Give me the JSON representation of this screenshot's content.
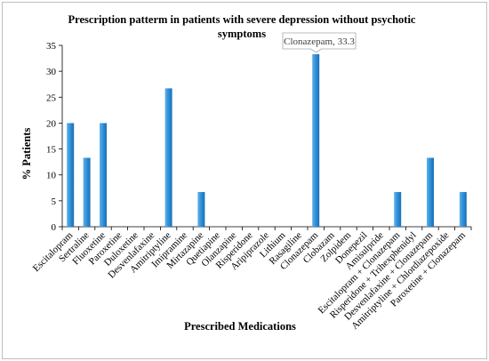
{
  "chart_data": {
    "type": "bar",
    "title": "Prescription patterm in patients with severe depression without psychotic symptoms",
    "xlabel": "Prescribed Medications",
    "ylabel": "% Patients",
    "ylim": [
      0,
      35
    ],
    "yticks": [
      0,
      5,
      10,
      15,
      20,
      25,
      30,
      35
    ],
    "grid": false,
    "legend": "none",
    "bar_color": "#2e8fd8",
    "categories": [
      "Escitalopram",
      "Sertraline",
      "Fluoxetine",
      "Paroxetine",
      "Duloxetine",
      "Desvenlafaxine",
      "Amitriptyline",
      "Imipramine",
      "Mirtazapine",
      "Quetiapine",
      "Olanzapine",
      "Risperidone",
      "Aripiprazole",
      "Lithium",
      "Rasagiline",
      "Clonazepam",
      "Clobazam",
      "Zolpidem",
      "Donepezil",
      "Amisulpride",
      "Escitalopram + Clonazepam",
      "Risperidone + Trihexphenidyl",
      "Desvenlafaxine + Clonazepam",
      "Amitriptyline + Chlordiazepoxide",
      "Paroxetine + Clonazepam"
    ],
    "values": [
      20,
      13.3,
      20,
      0,
      0,
      0,
      26.7,
      0,
      6.7,
      0,
      0,
      0,
      0,
      0,
      0,
      33.3,
      0,
      0,
      0,
      0,
      6.7,
      0,
      13.3,
      0,
      6.7
    ],
    "annotations": [
      {
        "text": "Clonazepam, 33.3",
        "category": "Clonazepam",
        "value": 33.3
      }
    ]
  }
}
